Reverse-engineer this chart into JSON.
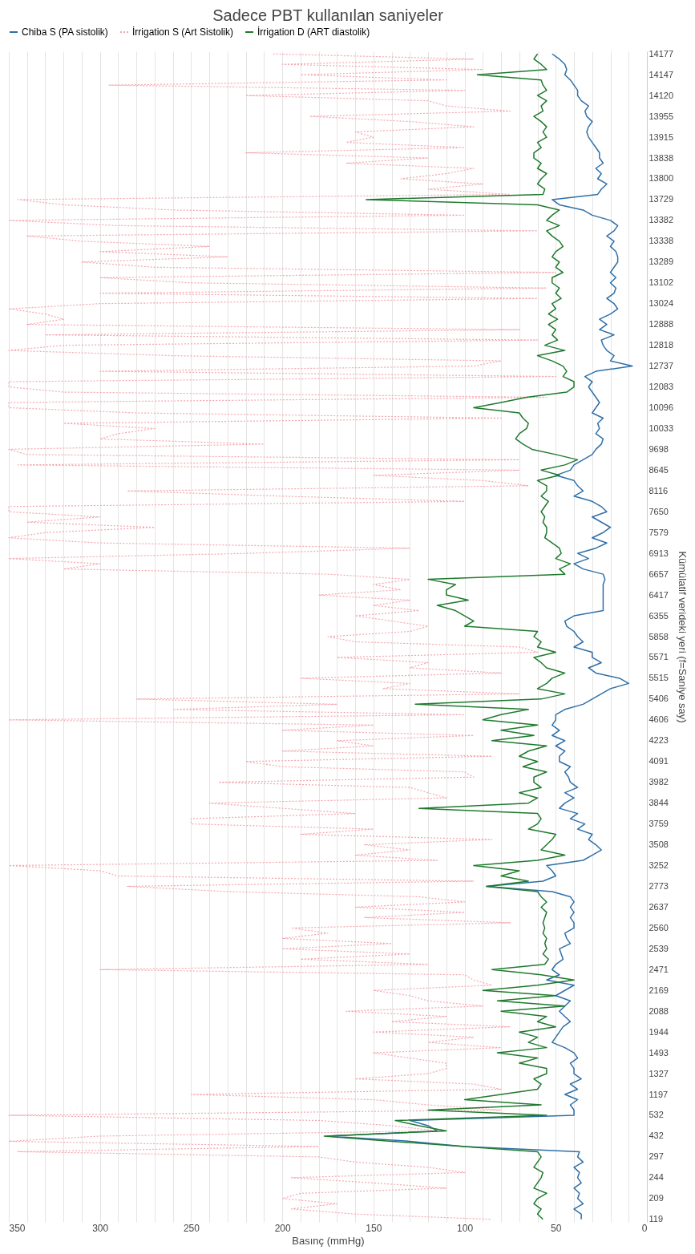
{
  "chart_data": {
    "type": "line",
    "title": "Sadece PBT kullanılan saniyeler",
    "xlabel": "Basınç (mmHg)",
    "ylabel": "Kümülatif verideki yeri (f=Saniye say)",
    "orientation": "horizontal",
    "categories": [
      "14177",
      null,
      null,
      null,
      "14147",
      null,
      null,
      null,
      "14120",
      null,
      null,
      null,
      "13955",
      null,
      null,
      null,
      "13915",
      null,
      null,
      null,
      "13838",
      null,
      null,
      null,
      "13800",
      null,
      null,
      null,
      "13729",
      null,
      null,
      null,
      "13382",
      null,
      null,
      null,
      "13338",
      null,
      null,
      null,
      "13289",
      null,
      null,
      null,
      "13102",
      null,
      null,
      null,
      "13024",
      null,
      null,
      null,
      "12888",
      null,
      null,
      null,
      "12818",
      null,
      null,
      null,
      "12737",
      null,
      null,
      null,
      "12083",
      null,
      null,
      null,
      "10096",
      null,
      null,
      null,
      "10033",
      null,
      null,
      null,
      "9698",
      null,
      null,
      null,
      "8645",
      null,
      null,
      null,
      "8116",
      null,
      null,
      null,
      "7650",
      null,
      null,
      null,
      "7579",
      null,
      null,
      null,
      "6913",
      null,
      null,
      null,
      "6657",
      null,
      null,
      null,
      "6417",
      null,
      null,
      null,
      "6355",
      null,
      null,
      null,
      "5858",
      null,
      null,
      null,
      "5571",
      null,
      null,
      null,
      "5515",
      null,
      null,
      null,
      "5406",
      null,
      null,
      null,
      "4606",
      null,
      null,
      null,
      "4223",
      null,
      null,
      null,
      "4091",
      null,
      null,
      null,
      "3982",
      null,
      null,
      null,
      "3844",
      null,
      null,
      null,
      "3759",
      null,
      null,
      null,
      "3508",
      null,
      null,
      null,
      "3252",
      null,
      null,
      null,
      "2773",
      null,
      null,
      null,
      "2637",
      null,
      null,
      null,
      "2560",
      null,
      null,
      null,
      "2539",
      null,
      null,
      null,
      "2471",
      null,
      null,
      null,
      "2169",
      null,
      null,
      null,
      "2088",
      null,
      null,
      null,
      "1944",
      null,
      null,
      null,
      "1493",
      null,
      null,
      null,
      "1327",
      null,
      null,
      null,
      "1197",
      null,
      null,
      null,
      "532",
      null,
      null,
      null,
      "432",
      null,
      null,
      null,
      "297",
      null,
      null,
      null,
      "244",
      null,
      null,
      null,
      "209",
      null,
      null,
      null,
      "119"
    ],
    "series": [
      {
        "name": "Chiba S (PA sistolik)",
        "color": "#2e6fa8",
        "line_style": "solid",
        "values": [
          52,
          48,
          45,
          44,
          45,
          42,
          40,
          38,
          38,
          36,
          32,
          34,
          33,
          30,
          32,
          33,
          32,
          30,
          28,
          26,
          26,
          24,
          28,
          25,
          27,
          22,
          25,
          27,
          52,
          48,
          35,
          30,
          20,
          16,
          18,
          22,
          18,
          20,
          17,
          16,
          16,
          18,
          20,
          17,
          20,
          17,
          18,
          22,
          18,
          16,
          20,
          26,
          22,
          26,
          18,
          25,
          24,
          22,
          18,
          20,
          8,
          28,
          34,
          30,
          32,
          30,
          28,
          26,
          28,
          30,
          24,
          27,
          26,
          28,
          24,
          25,
          28,
          30,
          35,
          40,
          42,
          50,
          40,
          38,
          35,
          40,
          30,
          25,
          22,
          30,
          25,
          20,
          24,
          30,
          22,
          28,
          38,
          32,
          40,
          35,
          24,
          23,
          24,
          24,
          24,
          24,
          24,
          24,
          40,
          45,
          44,
          40,
          38,
          35,
          40,
          30,
          30,
          25,
          32,
          28,
          15,
          10,
          20,
          25,
          30,
          35,
          45,
          50,
          50,
          52,
          48,
          52,
          45,
          50,
          45,
          48,
          48,
          42,
          45,
          43,
          42,
          38,
          45,
          40,
          45,
          48,
          38,
          42,
          34,
          38,
          30,
          32,
          28,
          25,
          30,
          35,
          55,
          52,
          50,
          57,
          88,
          52,
          42,
          40,
          42,
          40,
          42,
          40,
          40,
          45,
          44,
          42,
          48,
          47,
          46,
          50,
          52,
          48,
          55,
          40,
          45,
          50,
          42,
          45,
          48,
          45,
          42,
          46,
          48,
          50,
          52,
          45,
          40,
          38,
          42,
          40,
          40,
          36,
          42,
          38,
          45,
          38,
          42,
          40,
          40,
          130,
          120,
          115,
          175,
          130,
          100,
          37,
          38,
          35,
          40,
          37,
          38,
          36,
          40,
          37,
          38,
          35,
          40,
          36,
          36
        ]
      },
      {
        "name": "İrrigation S (Art Sistolik)",
        "color": "#f4a6ae",
        "line_style": "dotted",
        "values": [
          205,
          95,
          200,
          90,
          190,
          110,
          295,
          100,
          220,
          120,
          110,
          75,
          185,
          130,
          95,
          160,
          150,
          165,
          100,
          220,
          120,
          165,
          95,
          110,
          135,
          90,
          120,
          75,
          345,
          320,
          260,
          100,
          350,
          290,
          60,
          340,
          310,
          240,
          300,
          230,
          310,
          270,
          50,
          300,
          250,
          55,
          300,
          60,
          300,
          350,
          330,
          320,
          340,
          70,
          330,
          60,
          320,
          350,
          260,
          80,
          95,
          300,
          50,
          350,
          350,
          320,
          55,
          350,
          350,
          280,
          80,
          320,
          270,
          290,
          300,
          210,
          350,
          340,
          70,
          345,
          70,
          150,
          90,
          65,
          285,
          200,
          100,
          350,
          350,
          300,
          340,
          270,
          330,
          350,
          300,
          130,
          220,
          350,
          300,
          320,
          175,
          130,
          150,
          135,
          180,
          130,
          150,
          125,
          160,
          140,
          120,
          130,
          175,
          160,
          70,
          60,
          170,
          120,
          130,
          80,
          190,
          130,
          145,
          70,
          280,
          170,
          260,
          100,
          350,
          150,
          200,
          95,
          170,
          150,
          200,
          85,
          220,
          200,
          100,
          95,
          235,
          130,
          120,
          110,
          240,
          200,
          160,
          250,
          250,
          150,
          190,
          85,
          155,
          130,
          160,
          115,
          350,
          300,
          290,
          95,
          285,
          230,
          125,
          100,
          160,
          100,
          155,
          75,
          195,
          175,
          200,
          140,
          200,
          130,
          190,
          120,
          300,
          100,
          95,
          85,
          150,
          130,
          120,
          90,
          165,
          110,
          140,
          75,
          150,
          95,
          120,
          80,
          150,
          130,
          110,
          110,
          120,
          160,
          95,
          80,
          250,
          150,
          120,
          80,
          350,
          180,
          140,
          115,
          300,
          350,
          180,
          345,
          180,
          160,
          120,
          100,
          195,
          150,
          110,
          190,
          200,
          170,
          195,
          160,
          85
        ]
      },
      {
        "name": "İrrigation D (ART diastolik)",
        "color": "#1f7a2e",
        "line_style": "solid",
        "values": [
          60,
          62,
          58,
          55,
          93,
          58,
          57,
          55,
          60,
          55,
          58,
          57,
          62,
          58,
          55,
          57,
          55,
          60,
          58,
          62,
          62,
          58,
          60,
          55,
          58,
          60,
          56,
          57,
          154,
          60,
          48,
          52,
          55,
          48,
          55,
          52,
          48,
          46,
          50,
          52,
          48,
          50,
          46,
          52,
          52,
          48,
          50,
          47,
          52,
          50,
          54,
          49,
          54,
          50,
          52,
          49,
          56,
          45,
          60,
          52,
          46,
          44,
          46,
          40,
          40,
          44,
          66,
          80,
          95,
          70,
          68,
          65,
          66,
          70,
          72,
          68,
          63,
          50,
          38,
          45,
          58,
          48,
          60,
          55,
          55,
          58,
          54,
          56,
          58,
          56,
          57,
          55,
          55,
          56,
          52,
          48,
          47,
          50,
          42,
          48,
          45,
          120,
          105,
          110,
          110,
          98,
          115,
          105,
          100,
          95,
          100,
          60,
          62,
          58,
          60,
          50,
          62,
          58,
          55,
          45,
          52,
          55,
          60,
          45,
          58,
          127,
          65,
          80,
          90,
          60,
          80,
          62,
          85,
          55,
          65,
          70,
          60,
          68,
          55,
          62,
          62,
          58,
          70,
          60,
          65,
          125,
          60,
          58,
          60,
          65,
          50,
          52,
          55,
          58,
          45,
          60,
          95,
          70,
          80,
          65,
          88,
          60,
          58,
          55,
          58,
          55,
          56,
          57,
          56,
          57,
          55,
          56,
          55,
          57,
          54,
          56,
          85,
          58,
          40,
          60,
          90,
          50,
          82,
          45,
          80,
          55,
          60,
          50,
          70,
          60,
          65,
          55,
          82,
          60,
          70,
          55,
          55,
          62,
          58,
          60,
          80,
          100,
          58,
          120,
          55,
          138,
          125,
          110,
          177,
          140,
          100,
          60,
          58,
          60,
          62,
          57,
          58,
          60,
          62,
          55,
          60,
          62,
          58,
          60,
          57
        ]
      }
    ],
    "xlim": [
      350,
      0
    ],
    "xticks": [
      350,
      {
        "value": 340,
        "label": null
      },
      {
        "value": 330,
        "label": null
      },
      {
        "value": 320,
        "label": null
      },
      {
        "value": 310,
        "label": null
      },
      300,
      {
        "value": 290,
        "label": null
      },
      {
        "value": 280,
        "label": null
      },
      {
        "value": 270,
        "label": null
      },
      {
        "value": 260,
        "label": null
      },
      250,
      {
        "value": 240,
        "label": null
      },
      {
        "value": 230,
        "label": null
      },
      {
        "value": 220,
        "label": null
      },
      {
        "value": 210,
        "label": null
      },
      200,
      {
        "value": 190,
        "label": null
      },
      {
        "value": 180,
        "label": null
      },
      {
        "value": 170,
        "label": null
      },
      {
        "value": 160,
        "label": null
      },
      150,
      {
        "value": 140,
        "label": null
      },
      {
        "value": 130,
        "label": null
      },
      {
        "value": 120,
        "label": null
      },
      {
        "value": 110,
        "label": null
      },
      100,
      {
        "value": 90,
        "label": null
      },
      {
        "value": 80,
        "label": null
      },
      {
        "value": 70,
        "label": null
      },
      {
        "value": 60,
        "label": null
      },
      50,
      {
        "value": 40,
        "label": null
      },
      {
        "value": 30,
        "label": null
      },
      {
        "value": 20,
        "label": null
      },
      {
        "value": 10,
        "label": null
      },
      0
    ],
    "grid": "x",
    "legend": "top",
    "marker": "none"
  }
}
